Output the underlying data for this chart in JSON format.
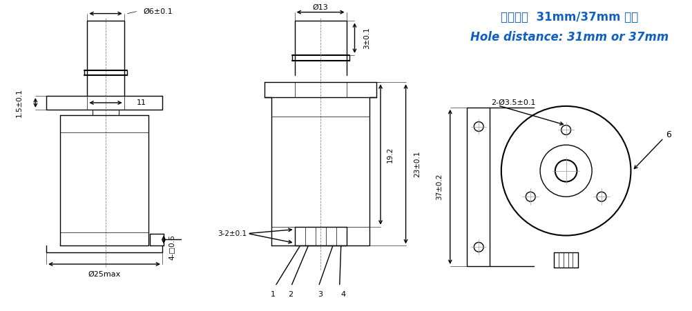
{
  "bg_color": "#ffffff",
  "line_color": "#000000",
  "blue_color": "#1060c0",
  "text_color": "#000000",
  "title_line1": "孔间距：  31mm/37mm 可选",
  "title_line2": "Hole distance: 31mm or 37mm",
  "dim_labels": {
    "d6": "Ø6±0.1",
    "d13": "Ø13",
    "d25": "Ø25max",
    "d35": "2-Ø3.5±0.1",
    "h11": "11",
    "h19": "19.2",
    "h23": "23±0.1",
    "h3": "3±0.1",
    "h15": "1.5±0.1",
    "h06": "4-□0.6",
    "h37": "37±0.2",
    "w3_2": "3-2±0.1",
    "num6": "6",
    "pin1": "1",
    "pin2": "2",
    "pin3": "3",
    "pin4": "4"
  }
}
